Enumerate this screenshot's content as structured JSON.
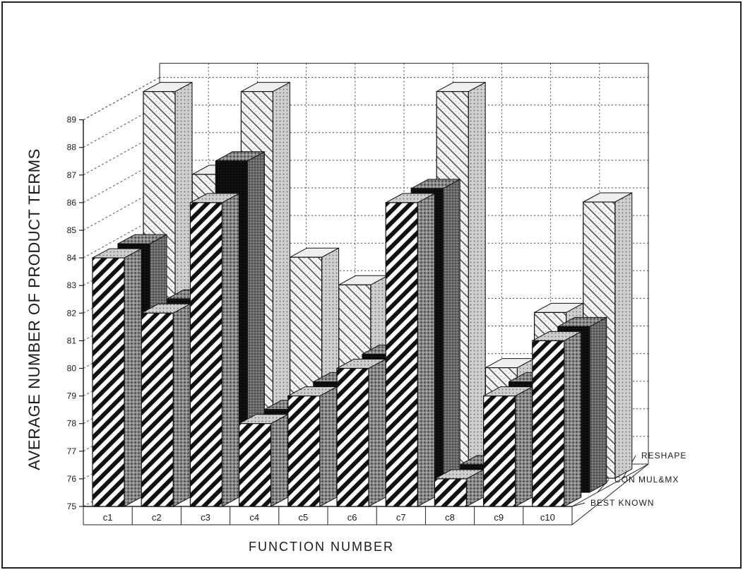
{
  "chart_data": {
    "type": "bar",
    "subtype": "3d-grouped-depth",
    "xlabel": "FUNCTION NUMBER",
    "ylabel": "AVERAGE NUMBER OF PRODUCT TERMS",
    "ylim": [
      75,
      89
    ],
    "yticks": [
      75,
      76,
      77,
      78,
      79,
      80,
      81,
      82,
      83,
      84,
      85,
      86,
      87,
      88,
      89
    ],
    "ytick_labels": [
      "75",
      "76",
      "77",
      "78",
      "79",
      "80",
      "81",
      "82",
      "83",
      "84",
      "85",
      "86",
      "87",
      "88",
      "89"
    ],
    "grid": true,
    "categories": [
      "c1",
      "c2",
      "c3",
      "c4",
      "c5",
      "c6",
      "c7",
      "c8",
      "c9",
      "c10"
    ],
    "series": [
      {
        "name": "BEST KNOWN",
        "values": [
          84,
          82,
          86,
          78,
          79,
          80,
          86,
          76,
          79,
          81
        ],
        "pattern": "dense-diagonal"
      },
      {
        "name": "CON MUL&MX",
        "values": [
          84,
          82,
          87,
          78,
          79,
          80,
          86,
          76,
          79,
          81
        ],
        "pattern": "black"
      },
      {
        "name": "RESHAPE",
        "values": [
          89,
          86,
          89,
          83,
          82,
          83,
          89,
          79,
          81,
          85
        ],
        "pattern": "light-diagonal"
      }
    ],
    "series_label_placement": "right-depth"
  }
}
